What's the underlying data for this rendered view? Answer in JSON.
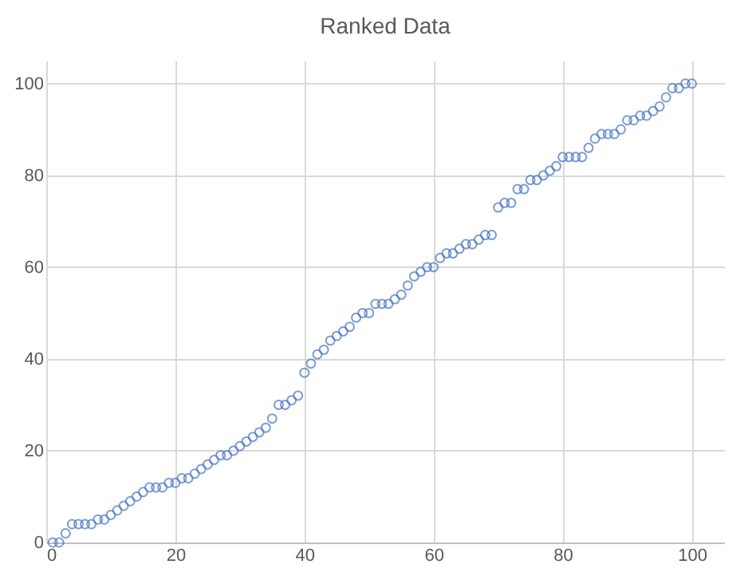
{
  "chart_data": {
    "type": "scatter",
    "title": "Ranked Data",
    "x": [
      1,
      2,
      3,
      4,
      5,
      6,
      7,
      8,
      9,
      10,
      11,
      12,
      13,
      14,
      15,
      16,
      17,
      18,
      19,
      20,
      21,
      22,
      23,
      24,
      25,
      26,
      27,
      28,
      29,
      30,
      31,
      32,
      33,
      34,
      35,
      36,
      37,
      38,
      39,
      40,
      41,
      42,
      43,
      44,
      45,
      46,
      47,
      48,
      49,
      50,
      51,
      52,
      53,
      54,
      55,
      56,
      57,
      58,
      59,
      60,
      61,
      62,
      63,
      64,
      65,
      66,
      67,
      68,
      69,
      70,
      71,
      72,
      73,
      74,
      75,
      76,
      77,
      78,
      79,
      80,
      81,
      82,
      83,
      84,
      85,
      86,
      87,
      88,
      89,
      90,
      91,
      92,
      93,
      94,
      95,
      96,
      97,
      98,
      99,
      100
    ],
    "series": [
      {
        "color": "#4472c4",
        "values": [
          0,
          0,
          2,
          4,
          4,
          4,
          4,
          5,
          5,
          6,
          7,
          8,
          9,
          10,
          11,
          12,
          12,
          12,
          13,
          13,
          14,
          14,
          15,
          16,
          17,
          18,
          19,
          19,
          20,
          21,
          22,
          23,
          24,
          25,
          27,
          30,
          30,
          31,
          32,
          37,
          39,
          41,
          42,
          44,
          45,
          46,
          47,
          49,
          50,
          50,
          52,
          52,
          52,
          53,
          54,
          56,
          58,
          59,
          60,
          60,
          62,
          63,
          63,
          64,
          65,
          65,
          66,
          67,
          67,
          73,
          74,
          74,
          77,
          77,
          79,
          79,
          80,
          81,
          82,
          84,
          84,
          84,
          84,
          86,
          88,
          89,
          89,
          89,
          90,
          92,
          92,
          93,
          93,
          94,
          95,
          97,
          99,
          99,
          100,
          100
        ]
      }
    ],
    "xlim": [
      0,
      105
    ],
    "xticks": [
      0,
      20,
      40,
      60,
      80,
      100
    ],
    "ylim": [
      0,
      105
    ],
    "yticks": [
      0,
      20,
      40,
      60,
      80,
      100
    ],
    "grid": true,
    "marker": "circle"
  }
}
